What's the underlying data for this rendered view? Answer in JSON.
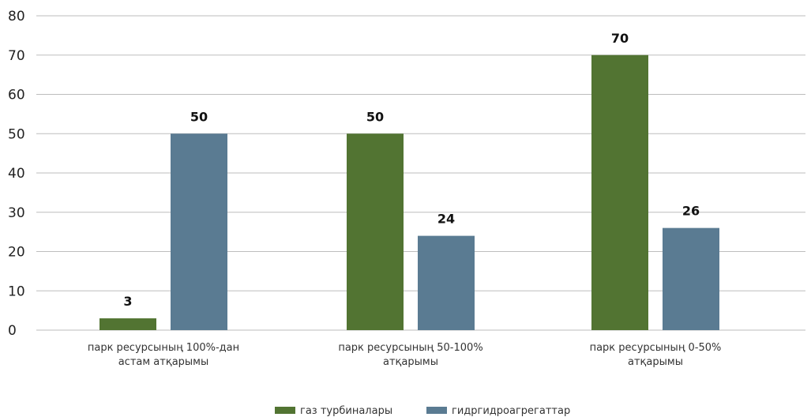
{
  "chart_data": {
    "type": "bar",
    "categories": [
      [
        "парк ресурсының 100%-дан",
        "астам атқарымы"
      ],
      [
        "парк ресурсының 50-100%",
        "атқарымы"
      ],
      [
        "парк ресурсының 0-50%",
        "атқарымы"
      ]
    ],
    "series": [
      {
        "name": "газ турбиналары",
        "color": "#527432",
        "values": [
          3,
          50,
          70
        ],
        "data_labels": [
          "3",
          "50",
          "70"
        ]
      },
      {
        "name": "гидргидроагрегаттар",
        "color": "#5a7b92",
        "values": [
          50,
          24,
          26
        ],
        "data_labels": [
          "50",
          "24",
          "26"
        ]
      }
    ],
    "ylim": [
      0,
      80
    ],
    "yticks": [
      0,
      10,
      20,
      30,
      40,
      50,
      60,
      70,
      80
    ],
    "grid": true,
    "legend_position": "bottom-center",
    "title": "",
    "xlabel": "",
    "ylabel": ""
  }
}
